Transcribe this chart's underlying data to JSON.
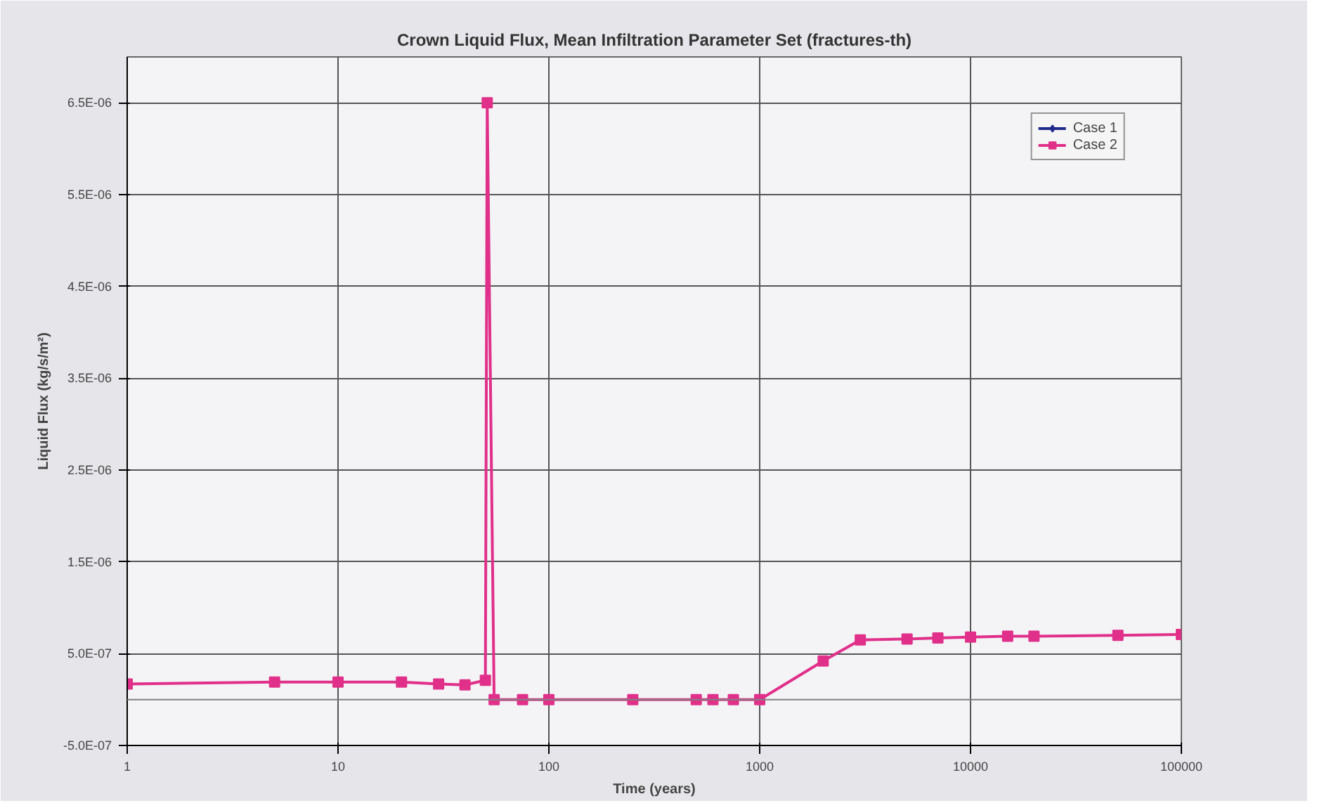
{
  "chart_data": {
    "type": "line",
    "title": "Crown Liquid Flux, Mean Infiltration Parameter Set (fractures-th)",
    "xlabel": "Time (years)",
    "ylabel": "Liquid Flux (kg/s/m²)",
    "x": [
      1,
      5,
      10,
      20,
      30,
      40,
      50,
      51,
      55,
      75,
      100,
      250,
      500,
      600,
      750,
      1000,
      2000,
      3000,
      5000,
      7000,
      10000,
      15000,
      20000,
      50000,
      100000
    ],
    "series": [
      {
        "name": "Case 1",
        "color": "#1f2a8c",
        "marker": "diamond",
        "values": [
          null,
          null,
          null,
          null,
          null,
          null,
          null,
          null,
          null,
          null,
          null,
          null,
          null,
          null,
          null,
          null,
          null,
          null,
          null,
          null,
          null,
          null,
          null,
          null,
          null
        ]
      },
      {
        "name": "Case 2",
        "color": "#e0308a",
        "marker": "square",
        "values": [
          1.7e-07,
          1.9e-07,
          1.9e-07,
          1.9e-07,
          1.7e-07,
          1.6e-07,
          2.1e-07,
          6.5e-06,
          0,
          0,
          0,
          0,
          0,
          0,
          0,
          0,
          4.2e-07,
          6.5e-07,
          6.6e-07,
          6.7e-07,
          6.8e-07,
          6.9e-07,
          6.9e-07,
          7e-07,
          7.1e-07
        ]
      }
    ],
    "log": "x",
    "xlim": [
      1,
      100000
    ],
    "xticks": [
      1,
      10,
      100,
      1000,
      10000,
      100000
    ],
    "ylim": [
      -5e-07,
      7e-06
    ],
    "yticks": [
      {
        "value": -5e-07,
        "label": "-5.0E-07"
      },
      {
        "value": 5e-07,
        "label": "5.0E-07"
      },
      {
        "value": 1.5e-06,
        "label": "1.5E-06"
      },
      {
        "value": 2.5e-06,
        "label": "2.5E-06"
      },
      {
        "value": 3.5e-06,
        "label": "3.5E-06"
      },
      {
        "value": 4.5e-06,
        "label": "4.5E-06"
      },
      {
        "value": 5.5e-06,
        "label": "5.5E-06"
      },
      {
        "value": 6.5e-06,
        "label": "6.5E-06"
      }
    ],
    "ref_lines": [
      {
        "axis": "y",
        "value": 0,
        "color": "#808080"
      }
    ],
    "grid": true,
    "legend": "top right",
    "line_style": "solid"
  }
}
